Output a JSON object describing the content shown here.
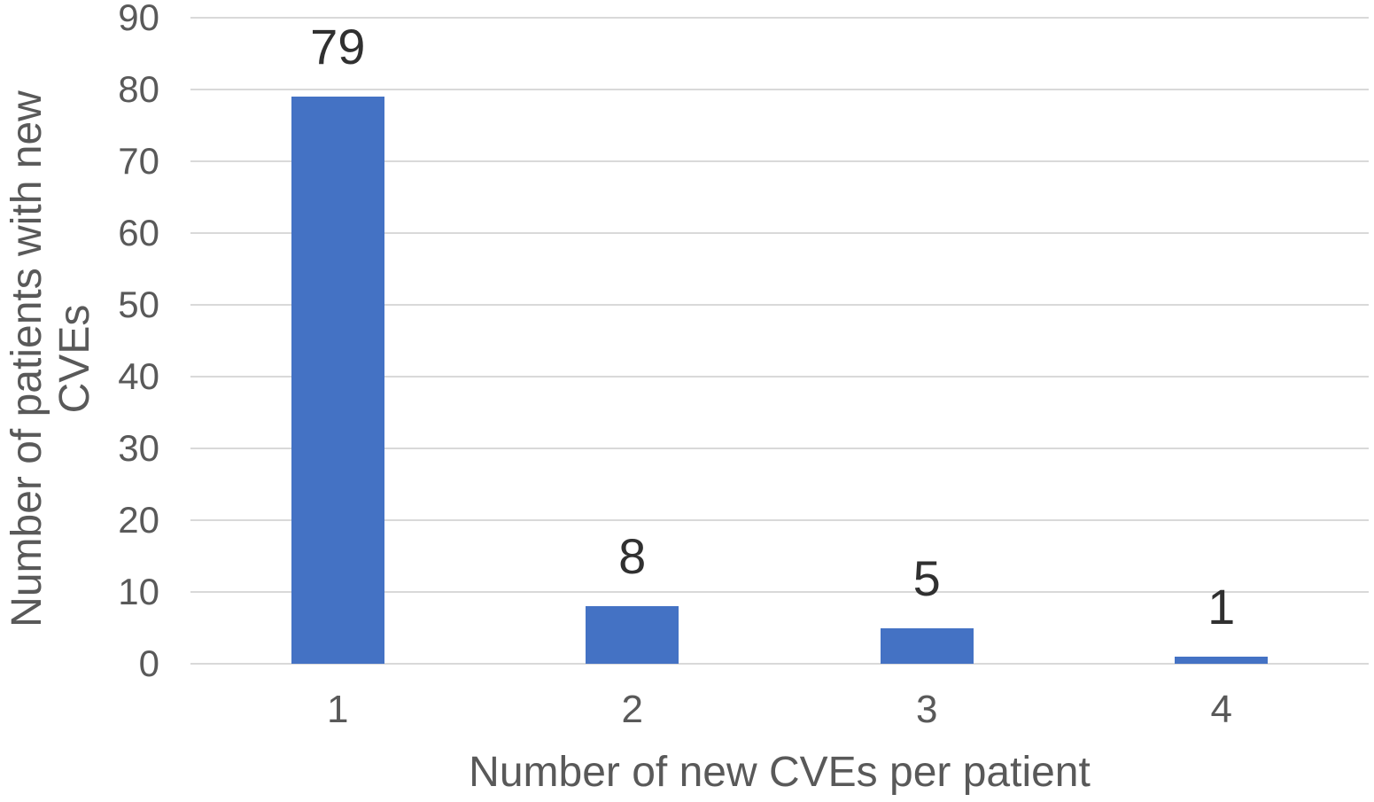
{
  "chart_data": {
    "type": "bar",
    "categories": [
      "1",
      "2",
      "3",
      "4"
    ],
    "values": [
      79,
      8,
      5,
      1
    ],
    "data_labels": [
      "79",
      "8",
      "5",
      "1"
    ],
    "xlabel": "Number of new CVEs per patient",
    "ylabel": "Number of patients with new CVEs",
    "ylabel_lines": [
      "Number of patients with new",
      "CVEs"
    ],
    "ylim": [
      0,
      90
    ],
    "yticks": [
      90,
      80,
      70,
      60,
      50,
      40,
      30,
      20,
      10,
      0
    ],
    "grid": "horizontal",
    "legend": "none",
    "colors": {
      "bar": "#4472C4",
      "gridline": "#D9D9D9",
      "tick_label": "#595959",
      "axis_title": "#595959",
      "data_label": "#303030",
      "background": "#FFFFFF"
    }
  }
}
